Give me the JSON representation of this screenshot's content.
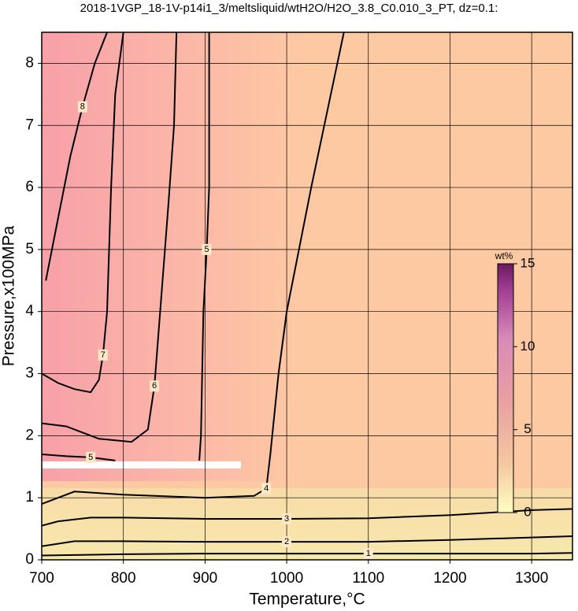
{
  "chart_data": {
    "type": "contour",
    "title": "2018-1VGP_18-1V-p14i1_3/meltsliquid/wtH2O/H2O_3.8_C0.010_3_PT, dz=0.1:",
    "x_label": "Temperature,°C",
    "y_label": "Pressure,x100MPa",
    "xlim": [
      700,
      1350
    ],
    "ylim": [
      0,
      8.5
    ],
    "xticks": [
      700,
      800,
      900,
      1000,
      1100,
      1200,
      1300
    ],
    "yticks": [
      0,
      1,
      2,
      3,
      4,
      5,
      6,
      7,
      8
    ],
    "grid": true,
    "contours": [
      {
        "level": 1,
        "x": [
          700,
          800,
          900,
          1000,
          1100,
          1200,
          1300,
          1350
        ],
        "y": [
          0.07,
          0.09,
          0.1,
          0.1,
          0.1,
          0.1,
          0.1,
          0.11
        ]
      },
      {
        "level": 2,
        "x": [
          700,
          740,
          800,
          900,
          1000,
          1100,
          1200,
          1300,
          1350
        ],
        "y": [
          0.22,
          0.3,
          0.3,
          0.29,
          0.29,
          0.29,
          0.32,
          0.36,
          0.38
        ]
      },
      {
        "level": 3,
        "x": [
          700,
          720,
          760,
          800,
          900,
          1000,
          1100,
          1200,
          1300,
          1350
        ],
        "y": [
          0.55,
          0.62,
          0.68,
          0.68,
          0.66,
          0.66,
          0.67,
          0.72,
          0.8,
          0.82
        ]
      },
      {
        "level": 4,
        "x": [
          700,
          740,
          800,
          900,
          960,
          975,
          980,
          990,
          1000,
          1030,
          1070
        ],
        "y": [
          0.9,
          1.1,
          1.05,
          1.0,
          1.03,
          1.15,
          1.7,
          3.0,
          4.0,
          6.0,
          8.5
        ]
      },
      {
        "level": 5,
        "x": [
          893,
          895,
          898,
          902,
          905,
          905
        ],
        "y": [
          1.6,
          2.0,
          4.0,
          5.0,
          6.0,
          8.5
        ]
      },
      {
        "level": 5,
        "x": [
          700,
          730,
          760,
          790
        ],
        "y": [
          1.7,
          1.67,
          1.65,
          1.6
        ]
      },
      {
        "level": 6,
        "x": [
          700,
          730,
          770,
          810,
          830,
          838,
          845,
          855,
          862,
          865
        ],
        "y": [
          2.2,
          2.15,
          1.95,
          1.9,
          2.1,
          2.8,
          4.0,
          5.7,
          7.0,
          8.5
        ]
      },
      {
        "level": 7,
        "x": [
          700,
          720,
          740,
          760,
          770,
          775,
          780,
          785,
          790,
          795,
          800
        ],
        "y": [
          3.0,
          2.85,
          2.75,
          2.7,
          2.9,
          3.3,
          4.0,
          6.0,
          7.5,
          8.0,
          8.5
        ]
      },
      {
        "level": 8,
        "x": [
          705,
          720,
          735,
          750,
          765,
          780
        ],
        "y": [
          4.5,
          5.5,
          6.5,
          7.3,
          8.0,
          8.5
        ]
      }
    ],
    "colorbar": {
      "label": "wt%",
      "lim": [
        0,
        15
      ],
      "ticks": [
        0,
        5,
        10,
        15
      ]
    }
  }
}
